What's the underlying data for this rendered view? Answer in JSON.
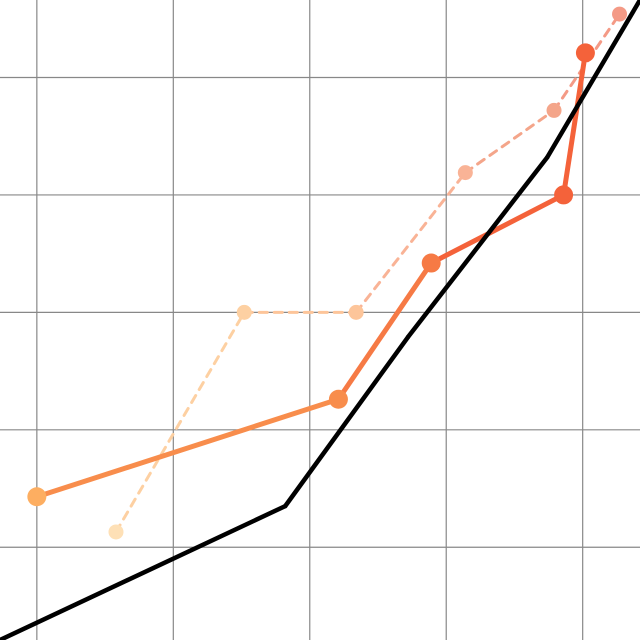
{
  "chart_data": {
    "type": "line",
    "title": "",
    "xlabel": "",
    "ylabel": "",
    "xlim": [
      0.73,
      5.42
    ],
    "ylim": [
      0.21,
      5.66
    ],
    "grid": true,
    "xgrid": [
      1,
      2,
      3,
      4,
      5
    ],
    "ygrid": [
      1,
      2,
      3,
      4,
      5
    ],
    "series": [
      {
        "style": "solid",
        "color": "#000000",
        "markers": false,
        "x": [
          0.73,
          2.82,
          3.72,
          4.74,
          5.42
        ],
        "y": [
          0.21,
          1.35,
          2.79,
          4.32,
          5.66
        ]
      },
      {
        "style": "solid",
        "colors": [
          "#fdae61",
          "#f88d4c",
          "#f67a45",
          "#f4623a"
        ],
        "markers": true,
        "x": [
          1.0,
          3.21,
          3.89,
          4.86,
          5.02
        ],
        "y": [
          1.43,
          2.26,
          3.42,
          4.0,
          5.21
        ]
      },
      {
        "style": "dashed",
        "colors": [
          "#fee0b6",
          "#fdd0a2",
          "#fdc59a",
          "#f9b396",
          "#f4a58a",
          "#f49a86"
        ],
        "markers": true,
        "x": [
          1.58,
          2.52,
          3.34,
          4.14,
          4.79,
          5.27
        ],
        "y": [
          1.13,
          3.0,
          3.0,
          4.19,
          4.72,
          5.54
        ]
      }
    ]
  }
}
